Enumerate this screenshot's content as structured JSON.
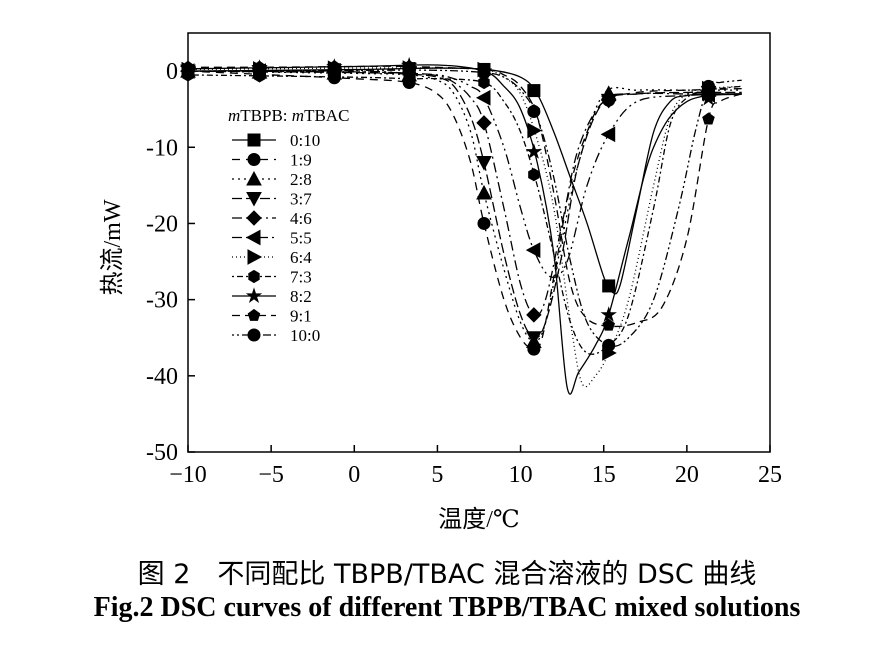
{
  "chart_data": {
    "type": "line",
    "xlabel": "温度/℃",
    "ylabel": "热流/mW",
    "xlim": [
      -10,
      25
    ],
    "ylim": [
      -50,
      5
    ],
    "xticks": [
      -10,
      -5,
      0,
      5,
      10,
      15,
      20,
      25
    ],
    "yticks": [
      0,
      -10,
      -20,
      -30,
      -40,
      -50
    ],
    "xtick_labels": [
      "−10",
      "−5",
      "0",
      "5",
      "10",
      "15",
      "20",
      "25"
    ],
    "ytick_labels": [
      "0",
      "-10",
      "-20",
      "-30",
      "-40",
      "-50"
    ],
    "grid": false,
    "legend_title_parts": {
      "m1": "m",
      "n1": "TBPB: ",
      "m2": "m",
      "n2": "TBAC"
    },
    "legend_placement": "left",
    "series": [
      {
        "name": "0:10",
        "marker": "square",
        "dash": "",
        "x": [
          -10,
          0,
          5,
          8,
          10,
          11,
          12,
          13,
          14,
          15,
          15.5,
          16,
          17,
          18,
          19,
          20,
          21.3,
          23.3
        ],
        "y": [
          0,
          0.2,
          0.4,
          0.2,
          -0.8,
          -3,
          -8,
          -14,
          -20,
          -27,
          -29,
          -28,
          -18,
          -8,
          -4,
          -3.2,
          -3,
          -3
        ]
      },
      {
        "name": "1:9",
        "marker": "circle",
        "dash": "8,6",
        "x": [
          -10,
          -5,
          0,
          3.3,
          5,
          6,
          7,
          7.8,
          9,
          10,
          10.8,
          11.3,
          12,
          13,
          14,
          15,
          17,
          20,
          23.3
        ],
        "y": [
          0,
          -0.5,
          -1,
          -1.5,
          -3,
          -6,
          -12,
          -20,
          -30,
          -35,
          -36.5,
          -35,
          -27,
          -15,
          -8,
          -4,
          -2.8,
          -2.5,
          -2.3
        ]
      },
      {
        "name": "2:8",
        "marker": "triangle-up",
        "dash": "2,4",
        "x": [
          -10,
          0,
          3.3,
          5,
          6,
          7,
          7.8,
          9,
          10,
          10.8,
          11.5,
          12.5,
          13.5,
          15,
          17,
          20,
          23.3
        ],
        "y": [
          0,
          -0.3,
          -0.5,
          -1.2,
          -3,
          -8,
          -16,
          -26,
          -33,
          -35.5,
          -33,
          -22,
          -12,
          -3,
          -2.5,
          -2.5,
          -2.5
        ]
      },
      {
        "name": "3:7",
        "marker": "triangle-down",
        "dash": "10,4",
        "x": [
          -10,
          0,
          3.3,
          5,
          6,
          7,
          7.8,
          9,
          10,
          10.8,
          11.5,
          12.5,
          13.5,
          15,
          17,
          20,
          23.3
        ],
        "y": [
          0,
          -0.2,
          -0.4,
          -0.8,
          -2,
          -6,
          -12,
          -24,
          -32,
          -35,
          -33,
          -24,
          -12,
          -4,
          -3,
          -2.8,
          -2.8
        ]
      },
      {
        "name": "4:6",
        "marker": "diamond",
        "dash": "10,4,2,4",
        "x": [
          -10,
          0,
          3.3,
          5,
          6,
          7,
          7.8,
          9,
          10,
          10.8,
          11.5,
          12.5,
          13.5,
          15,
          17,
          20,
          23.3
        ],
        "y": [
          0,
          -0.1,
          -0.3,
          -0.6,
          -1.5,
          -3.5,
          -6.8,
          -18,
          -28,
          -32,
          -30,
          -20,
          -10,
          -4,
          -3,
          -3,
          -3
        ]
      },
      {
        "name": "5:5",
        "marker": "triangle-left",
        "dash": "10,4,2,4,2,4",
        "x": [
          -10,
          0,
          3.3,
          5,
          6,
          7,
          7.8,
          9,
          10,
          10.8,
          11.8,
          12.8,
          14,
          15.3,
          17,
          20,
          23.3
        ],
        "y": [
          0,
          0,
          -0.3,
          -0.5,
          -1,
          -2,
          -3.5,
          -10,
          -18,
          -23.5,
          -27,
          -25,
          -15,
          -8.3,
          -4,
          -3.2,
          -3
        ]
      },
      {
        "name": "6:4",
        "marker": "triangle-right",
        "dash": "1,3",
        "x": [
          -10,
          0,
          5,
          7.8,
          9,
          10,
          11,
          12,
          13,
          13.7,
          14.5,
          15.3,
          16.5,
          18,
          19,
          20,
          21.3,
          23.3
        ],
        "y": [
          0.2,
          0.4,
          0.4,
          0.2,
          -0.8,
          -3,
          -9,
          -18,
          -33,
          -41,
          -40,
          -37,
          -30,
          -15,
          -6,
          -3,
          -2.3,
          -2
        ]
      },
      {
        "name": "7:3",
        "marker": "hexagon",
        "dash": "2,3,6,3",
        "x": [
          -10,
          0,
          3.3,
          5,
          7.8,
          9,
          10,
          11,
          12,
          13,
          14,
          15.3,
          16.5,
          18,
          19,
          20,
          21.3,
          23.3
        ],
        "y": [
          -0.5,
          -0.8,
          -1,
          -1,
          -1.5,
          -4,
          -8,
          -15,
          -24,
          -33,
          -37,
          -36,
          -32,
          -18,
          -7,
          -3.5,
          -2.5,
          -2
        ]
      },
      {
        "name": "8:2",
        "marker": "star",
        "dash": "",
        "x": [
          -10,
          0,
          5,
          7.8,
          9,
          10,
          11,
          12,
          12.8,
          13.5,
          14.5,
          15.3,
          16.5,
          18,
          20,
          23.3
        ],
        "y": [
          0.3,
          0.6,
          0.8,
          0,
          -2,
          -5,
          -12,
          -24,
          -41.5,
          -39.5,
          -36,
          -32,
          -22,
          -10,
          -4,
          -3
        ]
      },
      {
        "name": "9:1",
        "marker": "pentagon",
        "dash": "8,5",
        "x": [
          -10,
          -5.7,
          0,
          3.3,
          7.8,
          9,
          10,
          11,
          12,
          13,
          14,
          15.5,
          17,
          18.5,
          20,
          21.3,
          22,
          23.3
        ],
        "y": [
          0.5,
          0.5,
          0.6,
          0.6,
          0.2,
          -0.5,
          -2,
          -6,
          -16,
          -28,
          -32.5,
          -33.5,
          -33,
          -31,
          -22,
          -6.3,
          -4,
          -3
        ]
      },
      {
        "name": "10:0",
        "marker": "circle",
        "dash": "2,3,2,3,8,3",
        "x": [
          -10,
          0,
          5,
          7.8,
          9,
          10,
          11,
          12,
          13,
          14,
          15.3,
          16.5,
          18,
          19.5,
          20.5,
          21.3,
          22,
          23.3
        ],
        "y": [
          0,
          0.1,
          0.1,
          -0.2,
          -0.8,
          -2.5,
          -6,
          -14,
          -25,
          -33,
          -36,
          -35,
          -30,
          -18,
          -8,
          -2,
          -1.5,
          -1.2
        ]
      }
    ],
    "legend_marker_style": [
      "square",
      "circle",
      "triangle-up",
      "triangle-down",
      "diamond",
      "triangle-left",
      "triangle-right",
      "hexagon",
      "star",
      "pentagon",
      "circle"
    ]
  },
  "caption": {
    "cn": "图 2　不同配比 TBPB/TBAC 混合溶液的 DSC 曲线",
    "en": "Fig.2 DSC curves of different TBPB/TBAC mixed solutions"
  }
}
